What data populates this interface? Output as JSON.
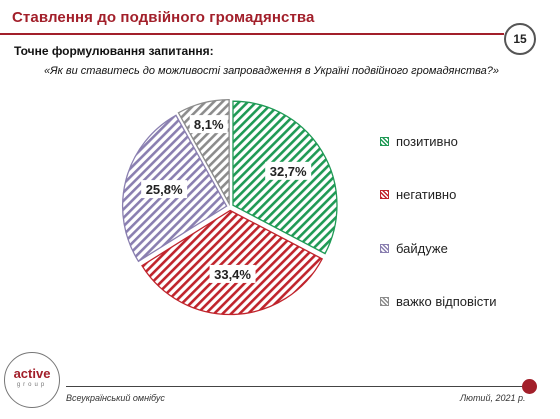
{
  "header": {
    "title": "Ставлення до подвійного громадянства",
    "page_number": "15"
  },
  "question": {
    "label": "Точне формулювання запитання:",
    "text": "«Як ви ставитесь до можливості запровадження в Україні подвійного громадянства?»"
  },
  "chart_data": {
    "type": "pie",
    "categories": [
      "позитивно",
      "негативно",
      "байдуже",
      "важко відповісти"
    ],
    "values": [
      32.7,
      33.4,
      25.8,
      8.1
    ],
    "labels": [
      "32,7%",
      "33,4%",
      "25,8%",
      "8,1%"
    ],
    "colors": [
      "#1f9a55",
      "#c0242c",
      "#8a7fb0",
      "#8c8c8c"
    ],
    "start": "12 o'clock, clockwise",
    "legend_position": "right"
  },
  "footer": {
    "logo_main": "active",
    "logo_sub": "group",
    "left_text": "Всеукраїнський омнібус",
    "right_text": "Лютий, 2021 р."
  }
}
